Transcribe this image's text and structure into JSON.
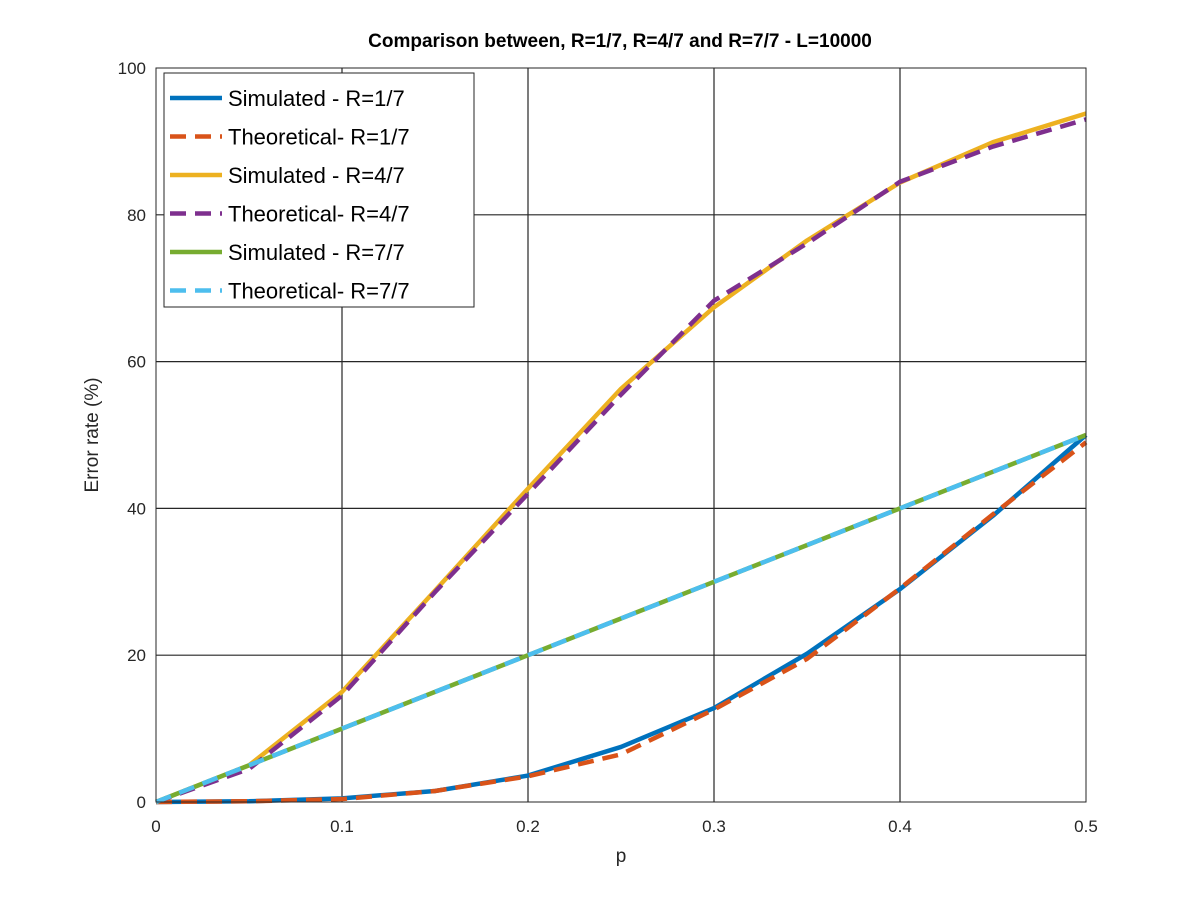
{
  "chart_data": {
    "type": "line",
    "title": "Comparison between, R=1/7, R=4/7 and R=7/7 - L=10000",
    "xlabel": "p",
    "ylabel": "Error rate (%)",
    "xlim": [
      0,
      0.5
    ],
    "ylim": [
      0,
      100
    ],
    "xticks": [
      "0",
      "0.1",
      "0.2",
      "0.3",
      "0.4",
      "0.5"
    ],
    "yticks": [
      "0",
      "20",
      "40",
      "60",
      "80",
      "100"
    ],
    "grid": true,
    "legend_position": "top-left",
    "x": [
      0,
      0.05,
      0.1,
      0.15,
      0.2,
      0.25,
      0.3,
      0.35,
      0.4,
      0.45,
      0.5
    ],
    "series": [
      {
        "name": "Simulated - R=1/7",
        "color": "#0072BD",
        "style": "solid",
        "values": [
          0,
          0.1,
          0.5,
          1.5,
          3.6,
          7.5,
          12.8,
          20.2,
          29.0,
          39.0,
          50.0
        ]
      },
      {
        "name": "Theoretical- R=1/7",
        "color": "#D95319",
        "style": "dashed",
        "values": [
          0,
          0.1,
          0.4,
          1.5,
          3.5,
          6.5,
          12.6,
          19.5,
          29.1,
          39.2,
          49.0
        ]
      },
      {
        "name": "Simulated - R=4/7",
        "color": "#EDB120",
        "style": "solid",
        "values": [
          0,
          5.0,
          15.0,
          28.8,
          42.7,
          56.3,
          67.4,
          76.5,
          84.4,
          89.9,
          93.8
        ]
      },
      {
        "name": "Theoretical- R=4/7",
        "color": "#7E2F8E",
        "style": "dashed",
        "values": [
          0,
          4.5,
          14.5,
          28.6,
          42.0,
          55.5,
          68.3,
          76.1,
          84.5,
          89.3,
          93.0
        ]
      },
      {
        "name": "Simulated - R=7/7",
        "color": "#77AC30",
        "style": "solid",
        "values": [
          0,
          5.0,
          10.0,
          15.0,
          20.0,
          25.0,
          30.0,
          35.0,
          40.0,
          45.0,
          50.0
        ]
      },
      {
        "name": "Theoretical- R=7/7",
        "color": "#4DBEEE",
        "style": "dashed",
        "values": [
          0,
          5.0,
          10.0,
          15.0,
          20.0,
          25.0,
          30.0,
          35.0,
          40.0,
          45.0,
          50.0
        ]
      }
    ]
  }
}
